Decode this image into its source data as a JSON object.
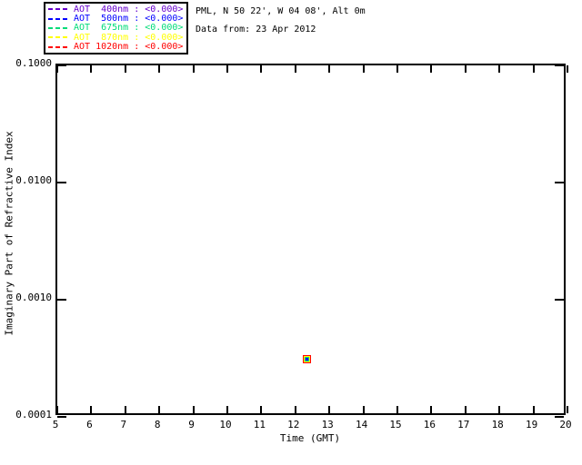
{
  "header": {
    "line1": "PML, N 50 22', W 04 08', Alt 0m",
    "line2": "Data from: 23 Apr 2012"
  },
  "legend": {
    "items": [
      {
        "label": "AOT  400nm : <0.000>",
        "color": "#6600CC"
      },
      {
        "label": "AOT  500nm : <0.000>",
        "color": "#0000FF"
      },
      {
        "label": "AOT  675nm : <0.000>",
        "color": "#00DC78"
      },
      {
        "label": "AOT  870nm : <0.000>",
        "color": "#FFFF00"
      },
      {
        "label": "AOT 1020nm : <0.000>",
        "color": "#FF0000"
      }
    ]
  },
  "chart_data": {
    "type": "scatter",
    "title": "",
    "xlabel": "Time (GMT)",
    "ylabel": "Imaginary Part of Refractive Index",
    "xlim": [
      5,
      20
    ],
    "ylim": [
      0.0001,
      0.1
    ],
    "yscale": "log",
    "grid": false,
    "legend_position": "top-left",
    "x_ticks": [
      5,
      6,
      7,
      8,
      9,
      10,
      11,
      12,
      13,
      14,
      15,
      16,
      17,
      18,
      19,
      20
    ],
    "y_tick_values": [
      0.1,
      0.01,
      0.001,
      0.0001
    ],
    "y_tick_labels": [
      "0.1000",
      "0.0100",
      "0.0010",
      "0.0001"
    ],
    "series": [
      {
        "name": "AOT 400nm",
        "color": "#6600CC",
        "x": [
          12.4
        ],
        "y": [
          0.0003
        ]
      },
      {
        "name": "AOT 500nm",
        "color": "#0000FF",
        "x": [
          12.4
        ],
        "y": [
          0.0003
        ]
      },
      {
        "name": "AOT 675nm",
        "color": "#00DC78",
        "x": [
          12.4
        ],
        "y": [
          0.0003
        ]
      },
      {
        "name": "AOT 870nm",
        "color": "#FFFF00",
        "x": [
          12.4
        ],
        "y": [
          0.0003
        ]
      },
      {
        "name": "AOT 1020nm",
        "color": "#FF0000",
        "x": [
          12.4
        ],
        "y": [
          0.0003
        ]
      }
    ]
  }
}
